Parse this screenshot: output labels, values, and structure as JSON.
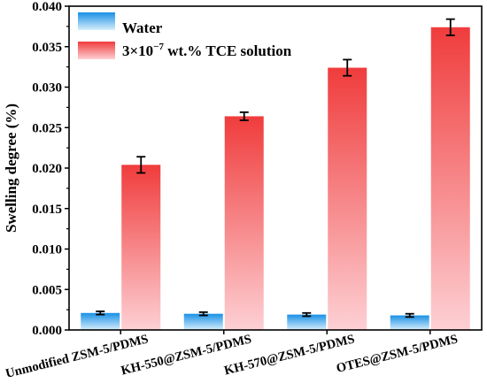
{
  "chart_data": {
    "type": "bar",
    "title": "",
    "xlabel": "",
    "ylabel": "Swelling degree (%)",
    "ylim": [
      0,
      0.04
    ],
    "yticks": [
      "0.000",
      "0.005",
      "0.010",
      "0.015",
      "0.020",
      "0.025",
      "0.030",
      "0.035",
      "0.040"
    ],
    "categories": [
      "Unmodified ZSM-5/PDMS",
      "KH-550@ZSM-5/PDMS",
      "KH-570@ZSM-5/PDMS",
      "OTES@ZSM-5/PDMS"
    ],
    "series": [
      {
        "name": "Water",
        "legend_prefix": "",
        "legend_sup": "",
        "legend_suffix": "Water",
        "color_top": "#1a90e6",
        "color_bottom": "#d6eefc",
        "values": [
          0.0021,
          0.002,
          0.0019,
          0.0018
        ],
        "errors": [
          0.0002,
          0.0002,
          0.0002,
          0.0002
        ]
      },
      {
        "name": "3×10−7 wt.% TCE solution",
        "legend_prefix": "3×10",
        "legend_sup": "−7",
        "legend_suffix": " wt.% TCE solution",
        "color_top": "#f03c3c",
        "color_bottom": "#fdd0d4",
        "values": [
          0.0204,
          0.0264,
          0.0324,
          0.0374
        ],
        "errors": [
          0.001,
          0.0005,
          0.001,
          0.001
        ]
      }
    ],
    "grid": false,
    "legend_position": "top-left"
  }
}
